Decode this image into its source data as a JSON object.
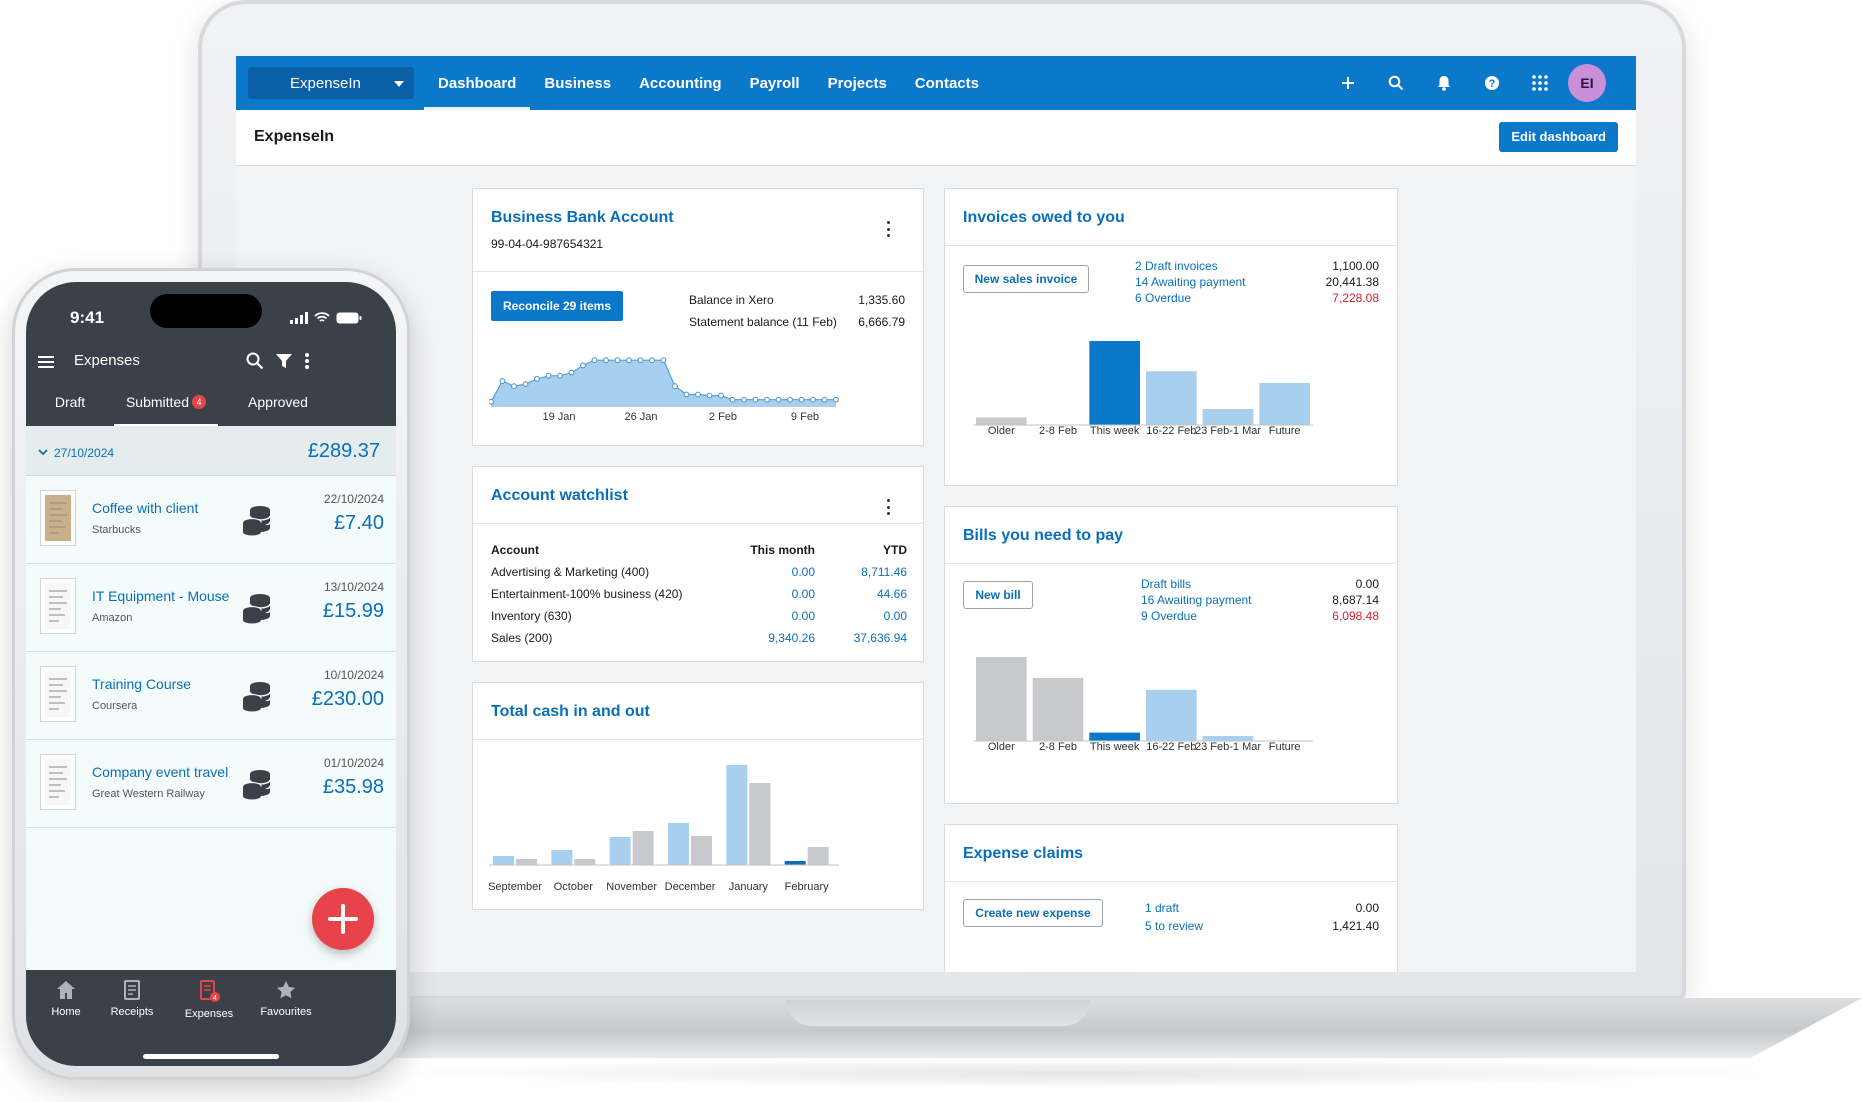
{
  "nav": {
    "org": "ExpenseIn",
    "tabs": [
      "Dashboard",
      "Business",
      "Accounting",
      "Payroll",
      "Projects",
      "Contacts"
    ],
    "active_tab": "Dashboard",
    "avatar_initials": "EI",
    "icons": [
      "plus-icon",
      "search-icon",
      "bell-icon",
      "help-icon",
      "apps-grid-icon"
    ]
  },
  "subheader": {
    "title": "ExpenseIn",
    "edit_button": "Edit dashboard"
  },
  "bank": {
    "title": "Business Bank Account",
    "account_number": "99-04-04-987654321",
    "reconcile_button": "Reconcile 29 items",
    "balance_label": "Balance in Xero",
    "balance_value": "1,335.60",
    "statement_label": "Statement balance (11 Feb)",
    "statement_value": "6,666.79",
    "chart_data": {
      "type": "area",
      "x_labels": [
        "19 Jan",
        "26 Jan",
        "2 Feb",
        "9 Feb"
      ],
      "values": [
        0.05,
        0.25,
        0.2,
        0.22,
        0.27,
        0.3,
        0.3,
        0.33,
        0.4,
        0.45,
        0.45,
        0.45,
        0.45,
        0.45,
        0.45,
        0.45,
        0.2,
        0.12,
        0.12,
        0.11,
        0.11,
        0.07,
        0.07,
        0.07,
        0.07,
        0.07,
        0.07,
        0.07,
        0.07,
        0.07,
        0.07
      ],
      "color": "#a9cfee"
    }
  },
  "watchlist": {
    "title": "Account watchlist",
    "headers": [
      "Account",
      "This month",
      "YTD"
    ],
    "rows": [
      {
        "account": "Advertising & Marketing (400)",
        "month": "0.00",
        "ytd": "8,711.46"
      },
      {
        "account": "Entertainment-100% business (420)",
        "month": "0.00",
        "ytd": "44.66"
      },
      {
        "account": "Inventory (630)",
        "month": "0.00",
        "ytd": "0.00"
      },
      {
        "account": "Sales (200)",
        "month": "9,340.26",
        "ytd": "37,636.94"
      }
    ]
  },
  "cash": {
    "title": "Total cash in and out",
    "chart_data": {
      "type": "bar",
      "categories": [
        "September",
        "October",
        "November",
        "December",
        "January",
        "February"
      ],
      "series": [
        {
          "values": [
            9,
            15,
            28,
            42,
            100,
            4
          ],
          "color": "#a9cfee"
        },
        {
          "values": [
            6,
            6,
            34,
            29,
            82,
            18
          ],
          "color": "#c8c9cc"
        }
      ],
      "highlight": {
        "category": "February",
        "series": 0,
        "color": "#0b6fb8"
      }
    }
  },
  "invoices": {
    "title": "Invoices owed to you",
    "button": "New sales invoice",
    "stats": [
      {
        "label": "2 Draft invoices",
        "value": "1,100.00",
        "red": false
      },
      {
        "label": "14 Awaiting payment",
        "value": "20,441.38",
        "red": false
      },
      {
        "label": "6 Overdue",
        "value": "7,228.08",
        "red": true
      }
    ],
    "chart_data": {
      "type": "bar",
      "categories": [
        "Older",
        "2-8 Feb",
        "This week",
        "16-22 Feb",
        "23 Feb-1 Mar",
        "Future"
      ],
      "values": [
        9,
        0,
        100,
        64,
        19,
        50
      ],
      "colors": [
        "#c8c9cc",
        "#c8c9cc",
        "#0b78c9",
        "#a9cfee",
        "#a9cfee",
        "#a9cfee"
      ]
    }
  },
  "bills": {
    "title": "Bills you need to pay",
    "button": "New bill",
    "stats": [
      {
        "label": "Draft bills",
        "value": "0.00",
        "red": false
      },
      {
        "label": "16 Awaiting payment",
        "value": "8,687.14",
        "red": false
      },
      {
        "label": "9 Overdue",
        "value": "6,098.48",
        "red": true
      }
    ],
    "chart_data": {
      "type": "bar",
      "categories": [
        "Older",
        "2-8 Feb",
        "This week",
        "16-22 Feb",
        "23 Feb-1 Mar",
        "Future"
      ],
      "values": [
        100,
        75,
        10,
        61,
        6,
        0
      ],
      "colors": [
        "#c8c9cc",
        "#c8c9cc",
        "#0b78c9",
        "#a9cfee",
        "#a9cfee",
        "#a9cfee"
      ]
    }
  },
  "claims": {
    "title": "Expense claims",
    "button": "Create new expense",
    "stats": [
      {
        "label": "1 draft",
        "value": "0.00"
      },
      {
        "label": "5 to review",
        "value": "1,421.40"
      }
    ]
  },
  "phone": {
    "time": "9:41",
    "title": "Expenses",
    "tabs": [
      "Draft",
      "Submitted",
      "Approved"
    ],
    "submitted_badge": "4",
    "group_date": "27/10/2024",
    "group_total": "£289.37",
    "items": [
      {
        "name": "Coffee with client",
        "merchant": "Starbucks",
        "date": "22/10/2024",
        "amount": "£7.40"
      },
      {
        "name": "IT Equipment - Mouse",
        "merchant": "Amazon",
        "date": "13/10/2024",
        "amount": "£15.99"
      },
      {
        "name": "Training Course",
        "merchant": "Coursera",
        "date": "10/10/2024",
        "amount": "£230.00"
      },
      {
        "name": "Company event travel",
        "merchant": "Great Western Railway",
        "date": "01/10/2024",
        "amount": "£35.98"
      }
    ],
    "bottom_nav": [
      "Home",
      "Receipts",
      "Expenses",
      "Favourites"
    ],
    "expenses_badge": "4"
  }
}
